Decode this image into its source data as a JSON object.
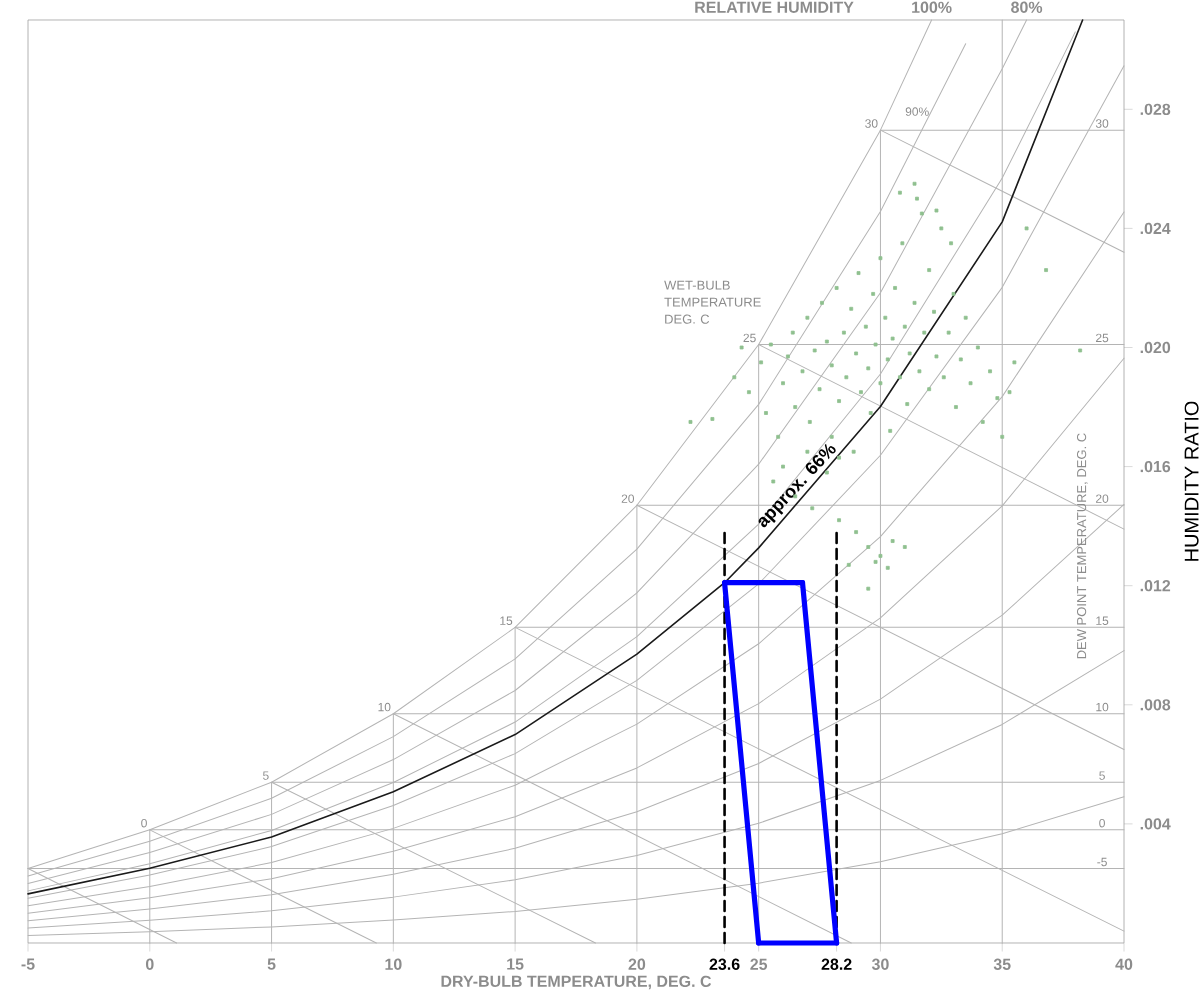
{
  "chart_data": {
    "type": "line",
    "xlabel": "DRY-BULB TEMPERATURE, DEG. C",
    "ylabel": "HUMIDITY RATIO",
    "xlim": [
      -5,
      40
    ],
    "ylim": [
      0,
      0.031
    ],
    "xticks": [
      -5,
      0,
      5,
      10,
      15,
      20,
      {
        "value": 23.6,
        "label": "**23.6**"
      },
      25,
      {
        "value": 28.2,
        "label": "**28.2**"
      },
      30,
      35,
      40
    ],
    "yticks": [
      {
        "value": 0.004,
        "label": ".004"
      },
      {
        "value": 0.008,
        "label": ".008"
      },
      {
        "value": 0.012,
        "label": ".012"
      },
      {
        "value": 0.016,
        "label": ".016"
      },
      {
        "value": 0.02,
        "label": ".020"
      },
      {
        "value": 0.024,
        "label": ".024"
      },
      {
        "value": 0.028,
        "label": ".028"
      }
    ],
    "series": [
      {
        "color": "#b4b4b4",
        "x": [
          0,
          0
        ],
        "values": [
          0,
          0.0038
        ]
      },
      {
        "color": "#b4b4b4",
        "x": [
          5,
          5
        ],
        "values": [
          0,
          0.0054
        ]
      },
      {
        "color": "#b4b4b4",
        "x": [
          10,
          10
        ],
        "values": [
          0,
          0.0077
        ]
      },
      {
        "color": "#b4b4b4",
        "x": [
          15,
          15
        ],
        "values": [
          0,
          0.0106
        ]
      },
      {
        "color": "#b4b4b4",
        "x": [
          20,
          20
        ],
        "values": [
          0,
          0.0147
        ]
      },
      {
        "color": "#b4b4b4",
        "x": [
          25,
          25
        ],
        "values": [
          0,
          0.0201
        ]
      },
      {
        "color": "#b4b4b4",
        "x": [
          30,
          30
        ],
        "values": [
          0,
          0.0273
        ]
      },
      {
        "color": "#b4b4b4",
        "x": [
          35,
          35
        ],
        "values": [
          0,
          0.031
        ]
      },
      {
        "color": "#b4b4b4",
        "x": [
          -5,
          40
        ],
        "values": [
          0.0025,
          0.0025
        ]
      },
      {
        "color": "#b4b4b4",
        "x": [
          0,
          40
        ],
        "values": [
          0.0038,
          0.0038
        ]
      },
      {
        "color": "#b4b4b4",
        "x": [
          5,
          40
        ],
        "values": [
          0.0054,
          0.0054
        ]
      },
      {
        "color": "#b4b4b4",
        "x": [
          10,
          40
        ],
        "values": [
          0.0077,
          0.0077
        ]
      },
      {
        "color": "#b4b4b4",
        "x": [
          15,
          40
        ],
        "values": [
          0.0106,
          0.0106
        ]
      },
      {
        "color": "#b4b4b4",
        "x": [
          20,
          40
        ],
        "values": [
          0.0147,
          0.0147
        ]
      },
      {
        "color": "#b4b4b4",
        "x": [
          25,
          40
        ],
        "values": [
          0.0201,
          0.0201
        ]
      },
      {
        "color": "#b4b4b4",
        "x": [
          30,
          40
        ],
        "values": [
          0.0273,
          0.0273
        ]
      },
      {
        "color": "#b4b4b4",
        "x": [
          -5,
          1.1
        ],
        "values": [
          0.0025,
          0
        ]
      },
      {
        "color": "#b4b4b4",
        "x": [
          0,
          9.3
        ],
        "values": [
          0.0038,
          0
        ]
      },
      {
        "color": "#b4b4b4",
        "x": [
          5,
          18.3
        ],
        "values": [
          0.0054,
          0
        ]
      },
      {
        "color": "#b4b4b4",
        "x": [
          10,
          28.8
        ],
        "values": [
          0.0077,
          0
        ]
      },
      {
        "color": "#b4b4b4",
        "x": [
          15,
          40
        ],
        "values": [
          0.0106,
          0.0004
        ]
      },
      {
        "color": "#b4b4b4",
        "x": [
          20,
          40
        ],
        "values": [
          0.0147,
          0.0065
        ]
      },
      {
        "color": "#b4b4b4",
        "x": [
          25,
          40
        ],
        "values": [
          0.0201,
          0.0139
        ]
      },
      {
        "color": "#b4b4b4",
        "x": [
          30,
          40
        ],
        "values": [
          0.0273,
          0.0232
        ]
      },
      {
        "name": "100%",
        "color": "#b4b4b4",
        "x": [
          -5,
          0,
          5,
          10,
          15,
          20,
          25,
          30,
          32.1
        ],
        "values": [
          0.0025,
          0.0038,
          0.0054,
          0.0077,
          0.0106,
          0.0147,
          0.0201,
          0.0273,
          0.031
        ]
      },
      {
        "color": "#b4b4b4",
        "x": [
          -5,
          0,
          5,
          10,
          15,
          20,
          25,
          30,
          33.5
        ],
        "values": [
          0.00225,
          0.00342,
          0.00486,
          0.00693,
          0.00954,
          0.01323,
          0.01809,
          0.02457,
          0.0302
        ]
      },
      {
        "name": "80%",
        "color": "#b4b4b4",
        "x": [
          -5,
          0,
          5,
          10,
          15,
          20,
          25,
          30,
          35,
          36
        ],
        "values": [
          0.002,
          0.00304,
          0.00432,
          0.00616,
          0.00848,
          0.01176,
          0.01608,
          0.02184,
          0.02936,
          0.031
        ]
      },
      {
        "color": "#b4b4b4",
        "x": [
          -5,
          0,
          5,
          10,
          15,
          20,
          25,
          30,
          35,
          38
        ],
        "values": [
          0.00175,
          0.00266,
          0.00378,
          0.00539,
          0.00742,
          0.01029,
          0.01407,
          0.01911,
          0.02569,
          0.0306
        ]
      },
      {
        "color": "#b4b4b4",
        "x": [
          -5,
          0,
          5,
          10,
          15,
          20,
          25,
          30,
          35,
          40
        ],
        "values": [
          0.0015,
          0.00228,
          0.00324,
          0.00462,
          0.00636,
          0.00882,
          0.01206,
          0.01638,
          0.02202,
          0.02946
        ]
      },
      {
        "color": "#b4b4b4",
        "x": [
          -5,
          0,
          5,
          10,
          15,
          20,
          25,
          30,
          35,
          40
        ],
        "values": [
          0.00125,
          0.0019,
          0.0027,
          0.00385,
          0.0053,
          0.00735,
          0.01005,
          0.01365,
          0.01835,
          0.02455
        ]
      },
      {
        "color": "#b4b4b4",
        "x": [
          -5,
          0,
          5,
          10,
          15,
          20,
          25,
          30,
          35,
          40
        ],
        "values": [
          0.001,
          0.00152,
          0.00216,
          0.00308,
          0.00424,
          0.00588,
          0.00804,
          0.01092,
          0.01468,
          0.01964
        ]
      },
      {
        "color": "#b4b4b4",
        "x": [
          -5,
          0,
          5,
          10,
          15,
          20,
          25,
          30,
          35,
          40
        ],
        "values": [
          0.00075,
          0.00114,
          0.00162,
          0.00231,
          0.00318,
          0.00441,
          0.00603,
          0.00819,
          0.01101,
          0.01473
        ]
      },
      {
        "color": "#b4b4b4",
        "x": [
          -5,
          0,
          5,
          10,
          15,
          20,
          25,
          30,
          35,
          40
        ],
        "values": [
          0.0005,
          0.00076,
          0.00108,
          0.00154,
          0.00212,
          0.00294,
          0.00402,
          0.00546,
          0.00734,
          0.00982
        ]
      },
      {
        "color": "#b4b4b4",
        "x": [
          -5,
          0,
          5,
          10,
          15,
          20,
          25,
          30,
          35,
          40
        ],
        "values": [
          0.00025,
          0.00038,
          0.00054,
          0.00077,
          0.00106,
          0.00147,
          0.00201,
          0.00273,
          0.00367,
          0.00491
        ]
      },
      {
        "color": "#1a1a1a",
        "x": [
          -5,
          0,
          5,
          10,
          15,
          20,
          23.6,
          25,
          30,
          35,
          38.3
        ],
        "values": [
          0.00165,
          0.00251,
          0.00356,
          0.00508,
          0.007,
          0.0097,
          0.0121,
          0.01327,
          0.01802,
          0.02422,
          0.031
        ]
      },
      {
        "type": "scatter",
        "marker": "square",
        "color": "#8fc08f",
        "x": [
          24.6,
          25.1,
          25.3,
          25.5,
          25.8,
          26.0,
          26.2,
          26.4,
          26.5,
          26.8,
          27.0,
          27.1,
          27.3,
          27.5,
          27.6,
          27.8,
          28.0,
          28.0,
          28.2,
          28.3,
          28.5,
          28.6,
          28.8,
          28.9,
          29.0,
          29.1,
          29.2,
          29.4,
          29.5,
          29.6,
          29.7,
          29.8,
          30.0,
          30.0,
          30.2,
          30.3,
          30.4,
          30.5,
          30.6,
          30.8,
          30.9,
          31.0,
          31.1,
          31.2,
          31.4,
          31.5,
          31.6,
          31.8,
          32.0,
          32.0,
          32.2,
          32.3,
          32.5,
          32.6,
          32.8,
          33.0,
          33.1,
          33.3,
          33.5,
          33.7,
          34.0,
          34.2,
          34.5,
          34.8,
          35.0,
          22.2,
          23.1,
          24.0,
          24.3,
          31.4,
          30.8,
          32.3,
          32.9,
          31.7,
          36.8,
          38.2,
          36.0,
          35.5,
          35.3,
          29.0,
          29.5,
          30.0,
          30.5,
          31.0,
          29.8,
          30.3,
          29.5,
          28.7,
          28.3,
          26.5,
          27.2,
          27.8,
          28.3,
          26.0,
          25.6,
          27.0
        ],
        "values": [
          0.0185,
          0.0195,
          0.0178,
          0.0201,
          0.017,
          0.0188,
          0.0197,
          0.0205,
          0.018,
          0.0192,
          0.021,
          0.0175,
          0.0199,
          0.0186,
          0.0215,
          0.0202,
          0.017,
          0.0194,
          0.022,
          0.0182,
          0.0205,
          0.019,
          0.0213,
          0.0165,
          0.0198,
          0.0225,
          0.0185,
          0.0207,
          0.0193,
          0.0178,
          0.0218,
          0.0201,
          0.0188,
          0.023,
          0.021,
          0.0196,
          0.0172,
          0.0203,
          0.022,
          0.019,
          0.0235,
          0.0207,
          0.0181,
          0.0198,
          0.0215,
          0.025,
          0.0192,
          0.0205,
          0.0186,
          0.0226,
          0.0212,
          0.0197,
          0.024,
          0.019,
          0.0205,
          0.0218,
          0.018,
          0.0196,
          0.021,
          0.0188,
          0.02,
          0.0175,
          0.0192,
          0.0183,
          0.017,
          0.0175,
          0.0176,
          0.019,
          0.02,
          0.0255,
          0.0252,
          0.0246,
          0.0235,
          0.0245,
          0.0226,
          0.0199,
          0.024,
          0.0195,
          0.0185,
          0.0138,
          0.0133,
          0.013,
          0.0135,
          0.0133,
          0.0128,
          0.0126,
          0.0119,
          0.0127,
          0.0142,
          0.015,
          0.0146,
          0.0158,
          0.0163,
          0.016,
          0.0155,
          0.0165
        ]
      },
      {
        "line_style": "dashed",
        "color": "#000000",
        "x": [
          23.6,
          23.6
        ],
        "values": [
          0,
          0.0139
        ]
      },
      {
        "line_style": "dashed",
        "color": "#000000",
        "x": [
          28.2,
          28.2
        ],
        "values": [
          0,
          0.0139
        ]
      },
      {
        "color": "#0000ff",
        "x": [
          23.6,
          26.8
        ],
        "values": [
          0.0121,
          0.0121
        ]
      },
      {
        "color": "#0000ff",
        "x": [
          26.8,
          28.2
        ],
        "values": [
          0.0121,
          0
        ]
      },
      {
        "color": "#0000ff",
        "x": [
          25.0,
          28.2
        ],
        "values": [
          0,
          0
        ]
      },
      {
        "color": "#0000ff",
        "x": [
          23.6,
          25.0
        ],
        "values": [
          0.0121,
          0
        ]
      }
    ],
    "annotations": [
      {
        "text": "approx. 66%",
        "x": 26.9,
        "y": 0.0151
      },
      "RELATIVE HUMIDITY",
      "DEW POINT TEMPERATURE, DEG. C",
      "WET-BULB TEMPERATURE DEG. C",
      {
        "text": "90%",
        "x": 32.1,
        "y": 0.0277
      },
      {
        "text": "0",
        "x": 0,
        "y": 0.0038
      },
      {
        "text": "5",
        "x": 5,
        "y": 0.0054
      },
      {
        "text": "10",
        "x": 10,
        "y": 0.0077
      },
      {
        "text": "15",
        "x": 15,
        "y": 0.0106
      },
      {
        "text": "20",
        "x": 20,
        "y": 0.0147
      },
      {
        "text": "25",
        "x": 25,
        "y": 0.0201
      },
      {
        "text": "30",
        "x": 30,
        "y": 0.0273
      },
      {
        "text": "30",
        "x": 39.1,
        "y": 0.0273
      },
      {
        "text": "25",
        "x": 39.1,
        "y": 0.0201
      },
      {
        "text": "20",
        "x": 39.1,
        "y": 0.0147
      },
      {
        "text": "15",
        "x": 39.1,
        "y": 0.0106
      },
      {
        "text": "10",
        "x": 39.1,
        "y": 0.0077
      },
      {
        "text": "5",
        "x": 39.1,
        "y": 0.0054
      },
      {
        "text": "0",
        "x": 39.1,
        "y": 0.0038
      },
      {
        "text": "-5",
        "x": 39.1,
        "y": 0.0025
      }
    ]
  }
}
